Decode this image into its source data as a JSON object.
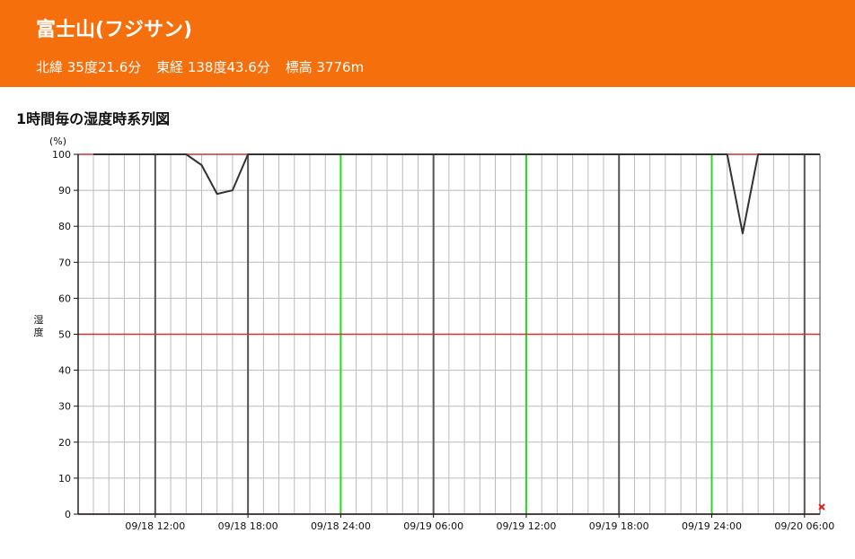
{
  "header": {
    "title": "富士山(フジサン)",
    "latitude": "北緯 35度21.6分",
    "longitude": "東経 138度43.6分",
    "elevation": "標高 3776m"
  },
  "section": {
    "title": "1時間毎の湿度時系列図"
  },
  "colors": {
    "banner": "#f56f0c",
    "reference_line": "#cc3333",
    "day_line": "#22dd22",
    "series_line": "#333333",
    "major_grid": "#555555",
    "minor_grid": "#bbbbbb",
    "end_marker": "#dd2222"
  },
  "chart_data": {
    "type": "line",
    "ylabel": "湿度",
    "yunit": "(%)",
    "ylim": [
      0,
      100
    ],
    "yticks": [
      0,
      10,
      20,
      30,
      40,
      50,
      60,
      70,
      80,
      90,
      100
    ],
    "x_start": "09/18 08:00",
    "x_end": "09/20 07:00",
    "xtick_labels": [
      "09/18 12:00",
      "09/18 18:00",
      "09/18 24:00",
      "09/19 06:00",
      "09/19 12:00",
      "09/19 18:00",
      "09/19 24:00",
      "09/20 06:00"
    ],
    "grid": "hourly",
    "reference_lines": [
      0,
      50,
      100
    ],
    "series": [
      {
        "values": [
          100,
          100,
          100,
          100,
          100,
          100,
          100,
          97,
          89,
          90,
          100,
          100,
          100,
          100,
          100,
          100,
          100,
          100,
          100,
          100,
          100,
          100,
          100,
          100,
          100,
          100,
          100,
          100,
          100,
          100,
          100,
          100,
          100,
          100,
          100,
          100,
          100,
          100,
          100,
          100,
          100,
          100,
          78,
          100,
          100,
          100,
          100,
          100
        ]
      }
    ],
    "end_marker_hour": 47
  }
}
